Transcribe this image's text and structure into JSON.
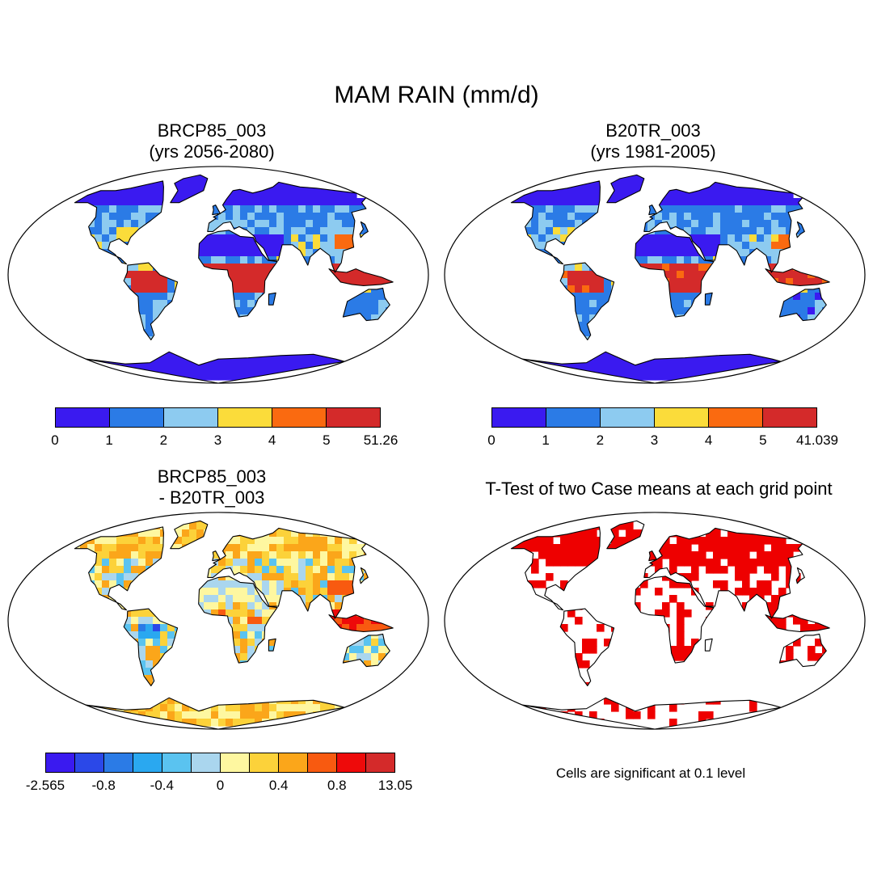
{
  "title": "MAM RAIN (mm/d)",
  "colors": {
    "abs_scale": [
      "#3a1af0",
      "#2b7be6",
      "#8dcbf0",
      "#fbdc3a",
      "#fa6a10",
      "#d42a2a"
    ],
    "diff_scale": [
      "#3a1af0",
      "#2b48e8",
      "#2b7be6",
      "#2aa8f0",
      "#5ac3f0",
      "#aad6ee",
      "#fef7a0",
      "#fcd23a",
      "#fba61a",
      "#f85a10",
      "#ee0a0a",
      "#d42a2a"
    ],
    "significant": "#ee0000",
    "ocean": "#ffffff",
    "outline": "#000000"
  },
  "panels": [
    {
      "id": "future",
      "title_line1": "BRCP85_003",
      "title_line2": "(yrs 2056-2080)",
      "colorbar_labels": [
        "0",
        "1",
        "2",
        "3",
        "4",
        "5",
        "51.26"
      ],
      "fill": "abs"
    },
    {
      "id": "historical",
      "title_line1": "B20TR_003",
      "title_line2": "(yrs 1981-2005)",
      "colorbar_labels": [
        "0",
        "1",
        "2",
        "3",
        "4",
        "5",
        "41.039"
      ],
      "fill": "abs"
    },
    {
      "id": "difference",
      "title_line1": "BRCP85_003",
      "title_line2": "- B20TR_003",
      "colorbar_labels": [
        "-2.565",
        "-0.8",
        "-0.4",
        "0",
        "0.4",
        "0.8",
        "13.05"
      ],
      "fill": "diff"
    },
    {
      "id": "ttest",
      "title_line1": "T-Test of two Case means at each grid point",
      "note": "Cells are significant at 0.1 level",
      "fill": "sig"
    }
  ]
}
